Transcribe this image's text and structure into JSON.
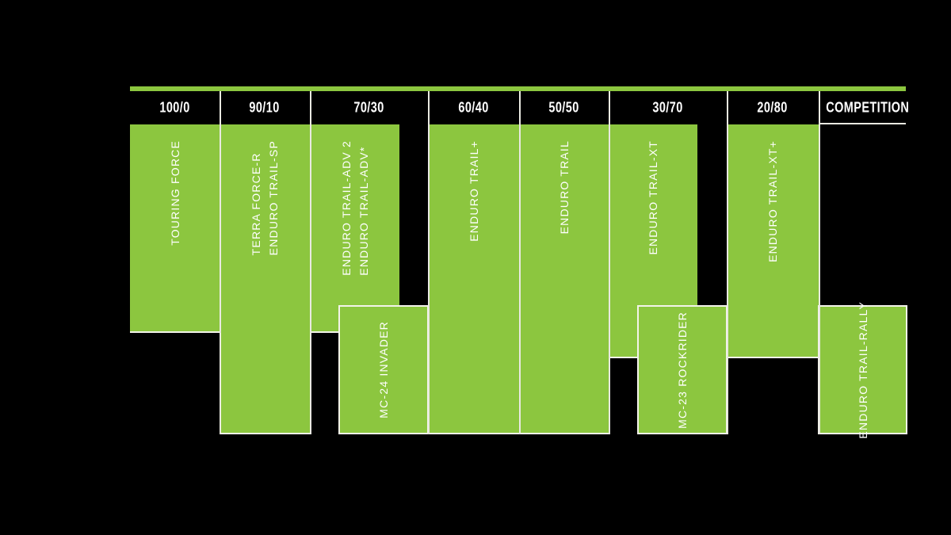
{
  "chart_data": {
    "type": "table",
    "title": "",
    "description": "Road/off-road ratio product range chart on black background with green product blocks",
    "categories": [
      "100/0",
      "90/10",
      "70/30",
      "60/40",
      "50/50",
      "30/70",
      "20/80",
      "COMPETITION"
    ],
    "columns": [
      {
        "ratio": "100/0",
        "lines": [
          "TOURING FORCE"
        ]
      },
      {
        "ratio": "90/10",
        "lines": [
          "TERRA FORCE-R",
          "ENDURO TRAIL-SP"
        ]
      },
      {
        "ratio": "70/30",
        "lines": [
          "ENDURO TRAIL-ADV 2",
          "ENDURO TRAIL-ADV*"
        ]
      },
      {
        "ratio": "60/40",
        "lines": [
          "ENDURO TRAIL+"
        ]
      },
      {
        "ratio": "50/50",
        "lines": [
          "ENDURO TRAIL"
        ]
      },
      {
        "ratio": "30/70",
        "lines": [
          "ENDURO TRAIL-XT"
        ]
      },
      {
        "ratio": "20/80",
        "lines": [
          "ENDURO TRAIL-XT+"
        ]
      },
      {
        "ratio": "COMPETITION",
        "lines": []
      }
    ],
    "overlay_boxes": [
      {
        "label": "MC-24 INVADER",
        "span": "70/30 to 60/40",
        "row": "lower"
      },
      {
        "label": "MC-23 ROCKRIDER",
        "span": "30/70",
        "row": "lower"
      },
      {
        "label": "ENDURO TRAIL-RALLY",
        "span": "COMPETITION",
        "row": "lower"
      }
    ],
    "layout_hints": {
      "legend_position": "none",
      "grid": "column separators only",
      "orientation": "vertical text rotated 90deg reading bottom-to-top"
    },
    "colors": {
      "background": "#000000",
      "green": "#8CC63F",
      "separator_line": "#E9E9E1",
      "text": "#FFFFFF"
    }
  }
}
